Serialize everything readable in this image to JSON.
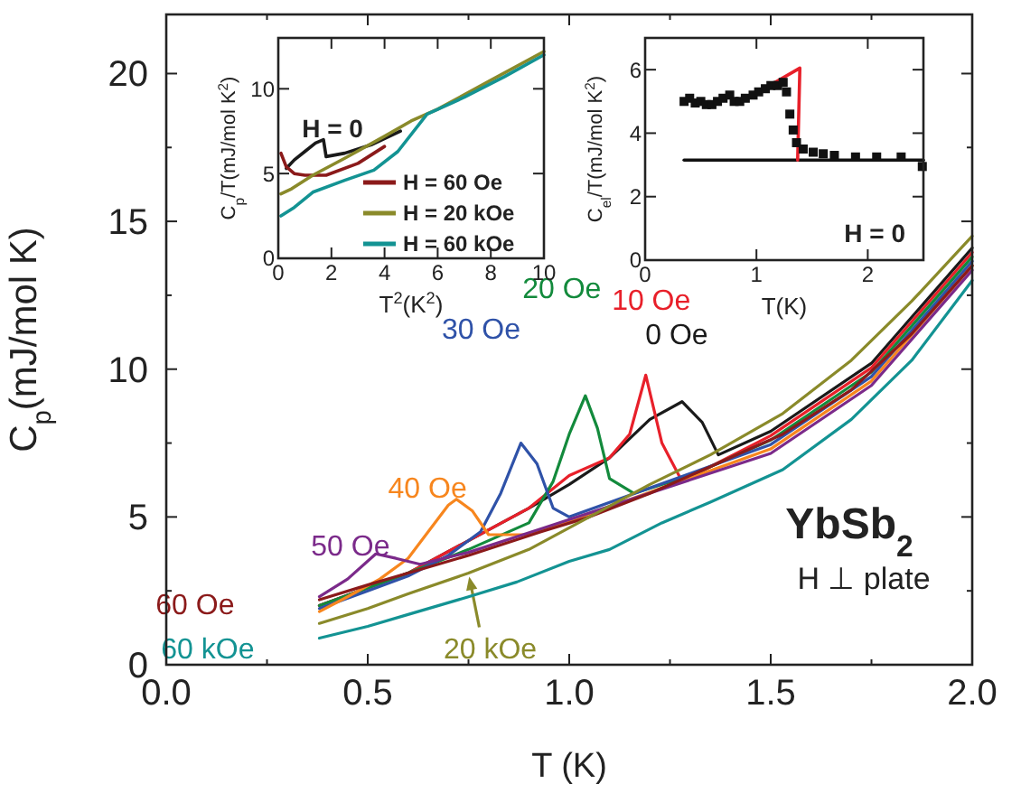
{
  "chart_data": [
    {
      "type": "line",
      "xlabel": "T (K)",
      "ylabel": "C$_{p}$(mJ/mol K)",
      "xlim": [
        0,
        2
      ],
      "ylim": [
        0,
        22
      ],
      "xticks": [
        {
          "value": 0,
          "label": "0.0"
        },
        {
          "value": 0.25,
          "label": null
        },
        {
          "value": 0.5,
          "label": "0.5"
        },
        {
          "value": 0.75,
          "label": null
        },
        {
          "value": 1,
          "label": "1.0"
        },
        {
          "value": 1.25,
          "label": null
        },
        {
          "value": 1.5,
          "label": "1.5"
        },
        {
          "value": 1.75,
          "label": null
        },
        {
          "value": 2,
          "label": "2.0"
        }
      ],
      "yticks": [
        0,
        {
          "value": 2.5,
          "label": null
        },
        5,
        {
          "value": 7.5,
          "label": null
        },
        10,
        {
          "value": 12.5,
          "label": null
        },
        15,
        {
          "value": 17.5,
          "label": null
        },
        20
      ],
      "annotations": [
        "YbSb$_{2}$",
        "H ⊥ plate"
      ],
      "series": [
        {
          "name": "0 Oe",
          "color": "#1a1a1a",
          "x": [
            0.38,
            0.6,
            0.75,
            0.9,
            1.0,
            1.1,
            1.2,
            1.28,
            1.33,
            1.37,
            1.5,
            1.75,
            2.0
          ],
          "values": [
            2.0,
            3.1,
            4.2,
            5.3,
            6.1,
            7.0,
            8.3,
            8.9,
            8.2,
            7.1,
            7.9,
            10.2,
            14.1
          ]
        },
        {
          "name": "10 Oe",
          "color": "#e8202a",
          "x": [
            0.38,
            0.6,
            0.75,
            0.9,
            1.0,
            1.1,
            1.15,
            1.19,
            1.23,
            1.28,
            1.35,
            1.5,
            1.75,
            2.0
          ],
          "values": [
            2.0,
            3.1,
            4.2,
            5.3,
            6.4,
            7.0,
            7.8,
            9.8,
            7.5,
            6.2,
            6.7,
            7.75,
            10.05,
            13.95
          ]
        },
        {
          "name": "20 Oe",
          "color": "#138a3c",
          "x": [
            0.38,
            0.5,
            0.6,
            0.75,
            0.9,
            0.96,
            1.0,
            1.04,
            1.07,
            1.1,
            1.16,
            1.3,
            1.5,
            1.75,
            2.0
          ],
          "values": [
            2.0,
            2.6,
            3.1,
            3.9,
            4.8,
            6.2,
            7.8,
            9.1,
            8.0,
            6.3,
            5.8,
            6.4,
            7.6,
            9.9,
            13.8
          ]
        },
        {
          "name": "30 Oe",
          "color": "#2f52a8",
          "x": [
            0.38,
            0.5,
            0.6,
            0.7,
            0.78,
            0.83,
            0.88,
            0.92,
            0.96,
            1.0,
            1.5,
            1.75,
            2.0
          ],
          "values": [
            1.9,
            2.5,
            3.0,
            3.7,
            4.5,
            5.8,
            7.5,
            6.8,
            5.3,
            5.0,
            7.45,
            9.75,
            13.65
          ]
        },
        {
          "name": "40 Oe",
          "color": "#f7861e",
          "x": [
            0.38,
            0.45,
            0.53,
            0.6,
            0.65,
            0.7,
            0.72,
            0.76,
            0.8,
            0.9,
            1.05,
            1.5,
            1.75,
            2.0
          ],
          "values": [
            1.8,
            2.3,
            2.9,
            3.6,
            4.5,
            5.4,
            5.6,
            5.2,
            4.4,
            4.4,
            5.1,
            7.3,
            9.6,
            13.5
          ]
        },
        {
          "name": "50 Oe",
          "color": "#7b2a8a",
          "x": [
            0.38,
            0.45,
            0.52,
            0.57,
            0.63,
            0.75,
            0.93,
            1.5,
            1.75,
            2.0
          ],
          "values": [
            2.3,
            2.9,
            3.75,
            3.6,
            3.4,
            3.8,
            4.6,
            7.15,
            9.45,
            13.35
          ]
        },
        {
          "name": "60 Oe",
          "color": "#8b1a1a",
          "x": [
            0.38,
            0.5,
            0.6,
            0.75,
            0.93,
            1.05,
            1.2,
            1.35,
            1.53,
            1.7,
            1.85,
            2.0
          ],
          "values": [
            2.2,
            2.7,
            3.1,
            3.7,
            4.5,
            5.0,
            5.8,
            6.7,
            7.8,
            9.3,
            11.2,
            13.5
          ]
        },
        {
          "name": "20 kOe",
          "color": "#8a8a2a",
          "x": [
            0.38,
            0.5,
            0.6,
            0.75,
            0.9,
            1.05,
            1.2,
            1.35,
            1.53,
            1.7,
            1.85,
            2.0
          ],
          "values": [
            1.4,
            1.9,
            2.4,
            3.1,
            3.9,
            5.0,
            6.1,
            7.1,
            8.5,
            10.3,
            12.3,
            14.5
          ]
        },
        {
          "name": "60 kOe",
          "color": "#139393",
          "x": [
            0.38,
            0.5,
            0.6,
            0.75,
            0.87,
            1.0,
            1.1,
            1.23,
            1.35,
            1.53,
            1.7,
            1.85,
            2.0
          ],
          "values": [
            0.9,
            1.3,
            1.7,
            2.3,
            2.8,
            3.5,
            3.9,
            4.8,
            5.5,
            6.6,
            8.3,
            10.3,
            13.0
          ]
        }
      ]
    },
    {
      "type": "line",
      "xlabel": "T$^{2}$(K$^{2}$)",
      "ylabel": "C$_{p}$/T(mJ/mol K$^{2}$)",
      "xlim": [
        0,
        10
      ],
      "ylim": [
        0,
        13
      ],
      "xticks": [
        0,
        2,
        4,
        6,
        8,
        10
      ],
      "yticks": [
        0,
        5,
        10
      ],
      "legend": "bottom right",
      "annotations": [
        "H = 0"
      ],
      "series": [
        {
          "color": "#1a1a1a",
          "x": [
            0.3,
            0.6,
            1.0,
            1.4,
            1.7,
            1.8,
            2.5,
            3.5,
            4.6
          ],
          "values": [
            5.3,
            5.8,
            6.3,
            6.8,
            7.0,
            6.0,
            6.2,
            6.7,
            7.5
          ]
        },
        {
          "name": "H = 60 Oe",
          "color": "#8b1a1a",
          "x": [
            0.1,
            0.3,
            0.6,
            1.0,
            1.8,
            3.0,
            4.0
          ],
          "values": [
            6.2,
            5.4,
            5.0,
            4.9,
            4.9,
            5.6,
            6.6
          ]
        },
        {
          "name": "H = 20 kOe",
          "color": "#8a8a2a",
          "x": [
            0.1,
            0.5,
            1.3,
            2.5,
            4.0,
            5.0,
            6.0,
            8.0,
            10
          ],
          "values": [
            3.8,
            4.1,
            4.9,
            5.9,
            7.2,
            8.1,
            8.8,
            10.5,
            12.2
          ]
        },
        {
          "name": "H = 60 kOe",
          "color": "#139393",
          "x": [
            0.1,
            0.6,
            1.3,
            2.5,
            3.6,
            4.5,
            5.6,
            7.0,
            8.5,
            10
          ],
          "values": [
            2.5,
            3.0,
            3.9,
            4.6,
            5.2,
            6.3,
            8.5,
            9.5,
            10.7,
            12.0
          ]
        }
      ]
    },
    {
      "type": "scatter",
      "xlabel": "T(K)",
      "ylabel": "C$_{el}$/T(mJ/mol K$^{2}$)",
      "xlim": [
        0,
        2.5
      ],
      "ylim": [
        0,
        7
      ],
      "xticks": [
        0,
        1,
        2
      ],
      "yticks": [
        0,
        2,
        4,
        6
      ],
      "annotations": [
        "H = 0"
      ],
      "series": [
        {
          "color": "#111111",
          "marker": "square",
          "x": [
            0.35,
            0.4,
            0.45,
            0.5,
            0.55,
            0.6,
            0.65,
            0.7,
            0.76,
            0.8,
            0.85,
            0.9,
            0.97,
            1.02,
            1.08,
            1.13,
            1.19,
            1.24,
            1.27,
            1.3,
            1.33,
            1.36,
            1.42,
            1.51,
            1.6,
            1.7,
            1.89,
            2.08,
            2.3,
            2.49
          ],
          "values": [
            5.0,
            5.1,
            4.95,
            5.0,
            4.9,
            4.9,
            5.0,
            5.1,
            5.2,
            5.0,
            5.0,
            5.1,
            5.2,
            5.3,
            5.4,
            5.5,
            5.5,
            5.6,
            5.3,
            4.6,
            4.1,
            3.7,
            3.5,
            3.4,
            3.35,
            3.3,
            3.25,
            3.25,
            3.25,
            2.95
          ]
        },
        {
          "type": "line",
          "color": "#111111",
          "x": [
            0.35,
            2.5
          ],
          "values": [
            3.15,
            3.15
          ]
        },
        {
          "type": "line",
          "color": "#e8202a",
          "x": [
            0.92,
            1.39,
            1.37
          ],
          "values": [
            5.1,
            6.05,
            3.15
          ]
        }
      ]
    }
  ]
}
